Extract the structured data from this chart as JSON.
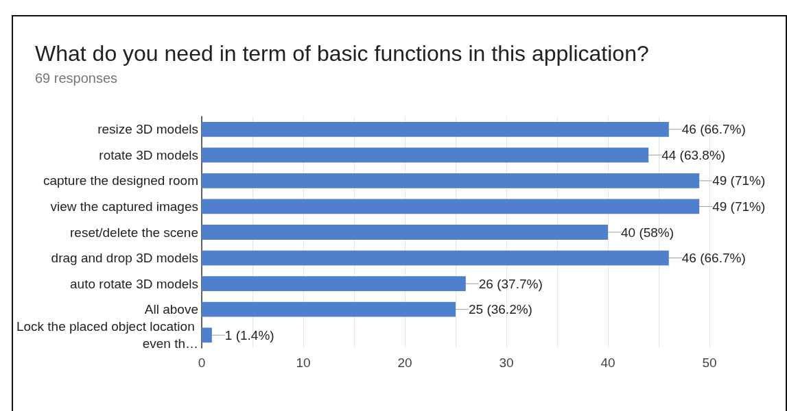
{
  "chart_data": {
    "type": "bar",
    "orientation": "horizontal",
    "title": "What do you need in term of basic functions in this application?",
    "subtitle": "69 responses",
    "categories": [
      "resize 3D models",
      "rotate 3D models",
      "capture the designed room",
      "view the captured images",
      "reset/delete the scene",
      "drag and drop 3D models",
      "auto rotate 3D models",
      "All above",
      "Lock the placed object location even th…"
    ],
    "values": [
      46,
      44,
      49,
      49,
      40,
      46,
      26,
      25,
      1
    ],
    "color": "#4e80cb",
    "value_labels": [
      "46 (66.7%)",
      "44 (63.8%)",
      "49 (71%)",
      "49 (71%)",
      "40 (58%)",
      "46 (66.7%)",
      "26 (37.7%)",
      "25 (36.2%)",
      "1 (1.4%)"
    ],
    "xlim": [
      0,
      50
    ],
    "xticks": [
      0,
      {
        "value": 5,
        "label": null
      },
      10,
      {
        "value": 15,
        "label": null
      },
      20,
      {
        "value": 25,
        "label": null
      },
      30,
      {
        "value": 35,
        "label": null
      },
      40,
      {
        "value": 45,
        "label": null
      },
      50
    ],
    "grid": "x"
  }
}
